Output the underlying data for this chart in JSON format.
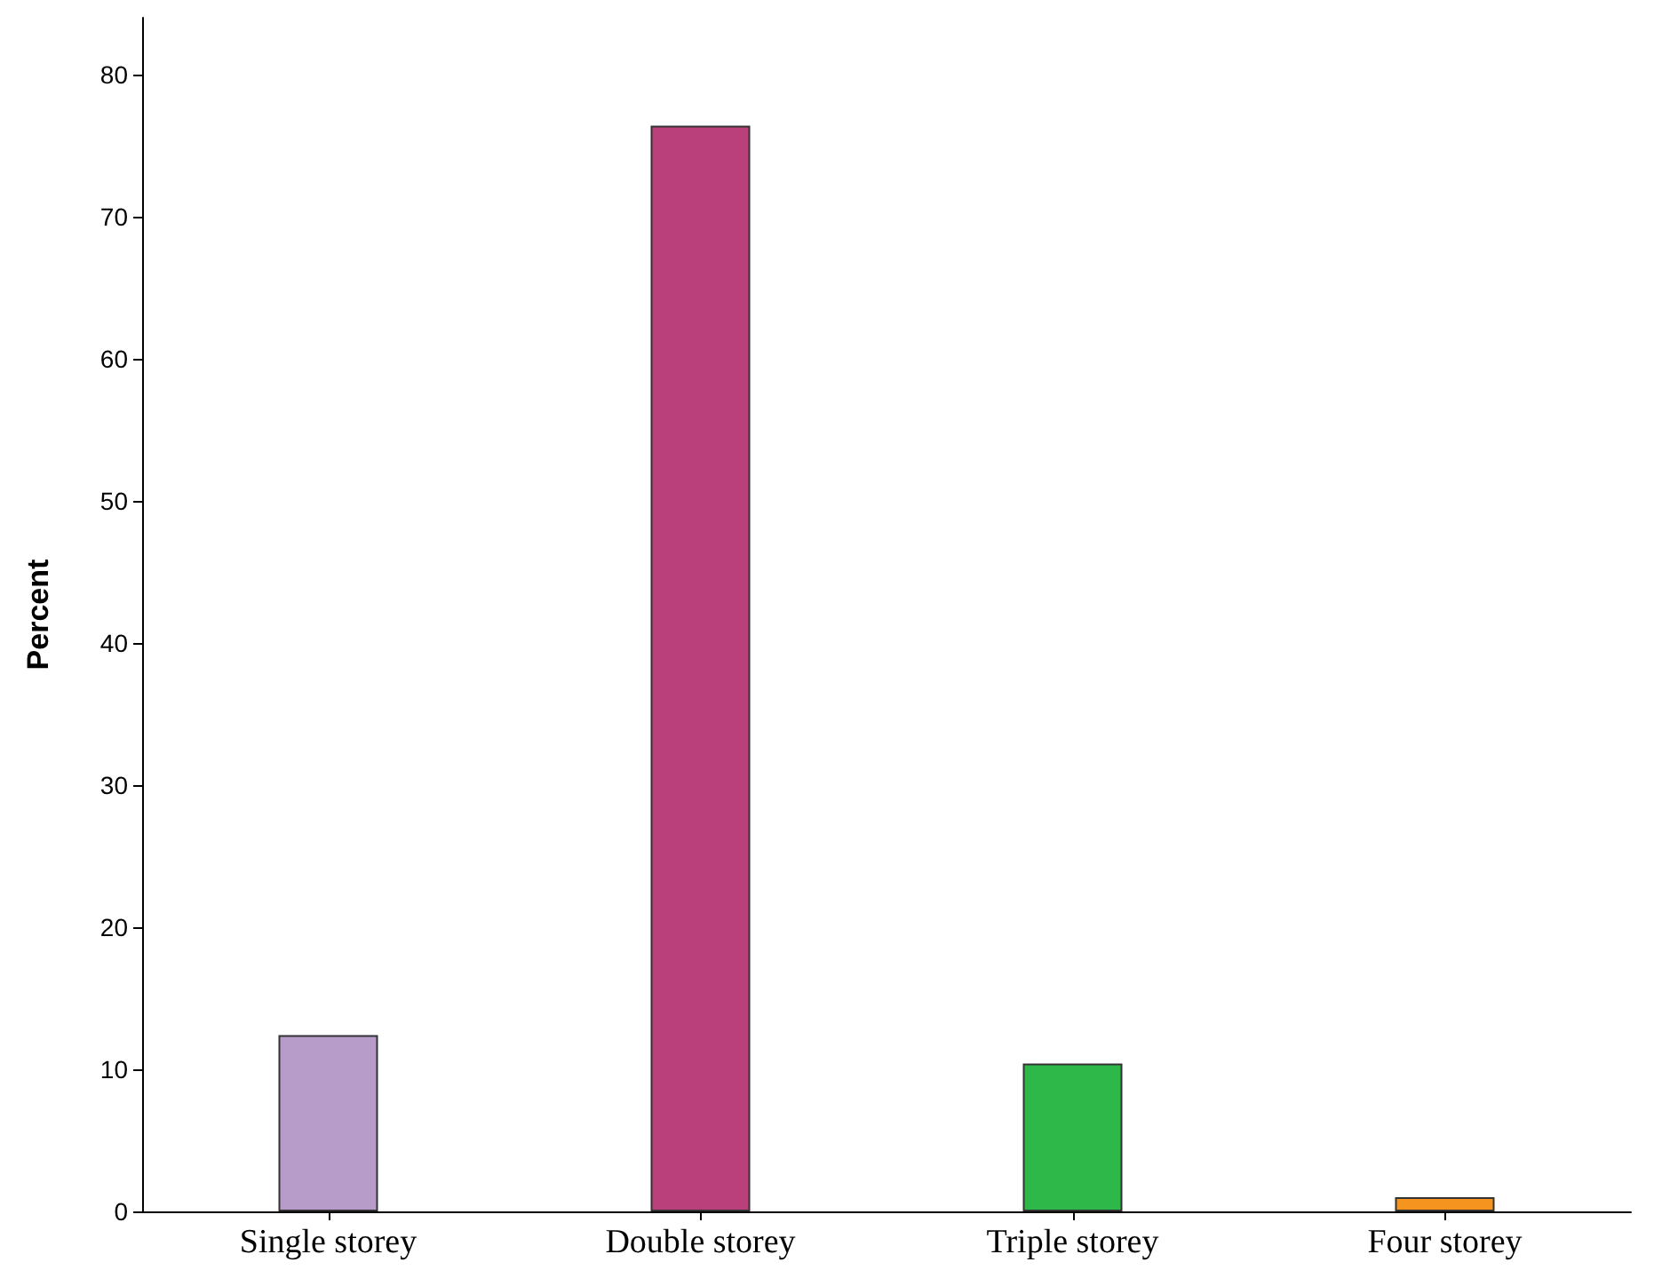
{
  "chart_data": {
    "type": "bar",
    "ylabel": "Percent",
    "categories": [
      "Single storey",
      "Double storey",
      "Triple storey",
      "Four storey"
    ],
    "values": [
      12.4,
      76.4,
      10.4,
      1.0
    ],
    "colors": [
      "#b79bc9",
      "#b9407a",
      "#2eb84a",
      "#f5951f"
    ],
    "ylim": [
      0,
      84
    ],
    "yticks": [
      0,
      10,
      20,
      30,
      40,
      50,
      60,
      70,
      80
    ],
    "grid": false
  }
}
